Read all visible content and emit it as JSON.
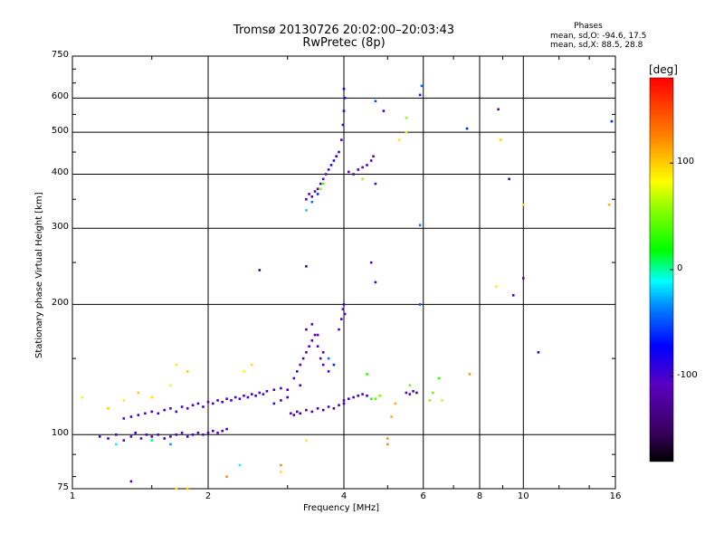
{
  "chart_data": {
    "type": "scatter",
    "title": "Tromsø 20130726 20:02:00–20:03:43",
    "subtitle": "RwPretec (8p)",
    "xlabel": "Frequency [MHz]",
    "ylabel": "Stationary phase Virtual Height [km]",
    "x_scale": "log",
    "y_scale": "log",
    "xlim": [
      1,
      16
    ],
    "ylim": [
      75,
      750
    ],
    "x_ticks": [
      "1",
      "2",
      "4",
      "6",
      "8",
      "10",
      "16"
    ],
    "x_tick_values": [
      1,
      2,
      4,
      6,
      8,
      10,
      16
    ],
    "y_ticks": [
      "750",
      "600",
      "500",
      "400",
      "300",
      "200",
      "100",
      "75"
    ],
    "y_tick_values": [
      750,
      600,
      500,
      400,
      300,
      200,
      100,
      75
    ],
    "grid": true,
    "phases": {
      "heading": "Phases",
      "line_o": "mean, sd,O: -94.6, 17.5",
      "line_x": "mean, sd,X:  88.5, 28.8"
    },
    "colorbar": {
      "title": "[deg]",
      "range": [
        -180,
        180
      ],
      "ticks": [
        "100",
        "0",
        "-100"
      ],
      "tick_values": [
        100,
        0,
        -100
      ]
    },
    "points": [
      [
        1.15,
        99,
        -100
      ],
      [
        1.2,
        98,
        -95
      ],
      [
        1.25,
        100,
        -110
      ],
      [
        1.3,
        97,
        -105
      ],
      [
        1.35,
        99,
        -100
      ],
      [
        1.38,
        101,
        -95
      ],
      [
        1.42,
        98,
        -110
      ],
      [
        1.46,
        100,
        -100
      ],
      [
        1.5,
        99,
        -105
      ],
      [
        1.55,
        100,
        -100
      ],
      [
        1.6,
        98,
        -95
      ],
      [
        1.65,
        99,
        -110
      ],
      [
        1.7,
        100,
        -100
      ],
      [
        1.75,
        101,
        -105
      ],
      [
        1.8,
        99,
        -100
      ],
      [
        1.85,
        100,
        -95
      ],
      [
        1.9,
        101,
        -100
      ],
      [
        1.95,
        100,
        -110
      ],
      [
        2.0,
        101,
        -100
      ],
      [
        2.05,
        102,
        -95
      ],
      [
        2.1,
        101,
        -105
      ],
      [
        2.15,
        102,
        -100
      ],
      [
        2.2,
        103,
        -100
      ],
      [
        1.3,
        109,
        -105
      ],
      [
        1.35,
        110,
        -95
      ],
      [
        1.4,
        111,
        -100
      ],
      [
        1.45,
        112,
        -110
      ],
      [
        1.5,
        113,
        -100
      ],
      [
        1.55,
        112,
        -95
      ],
      [
        1.6,
        114,
        -100
      ],
      [
        1.65,
        115,
        -105
      ],
      [
        1.7,
        113,
        -100
      ],
      [
        1.75,
        116,
        -95
      ],
      [
        1.8,
        115,
        -110
      ],
      [
        1.85,
        117,
        -100
      ],
      [
        1.9,
        118,
        -95
      ],
      [
        1.95,
        116,
        -100
      ],
      [
        2.0,
        119,
        -105
      ],
      [
        2.05,
        118,
        -100
      ],
      [
        2.1,
        120,
        -95
      ],
      [
        2.15,
        119,
        -100
      ],
      [
        2.2,
        121,
        -110
      ],
      [
        2.25,
        120,
        -100
      ],
      [
        2.3,
        122,
        -95
      ],
      [
        2.35,
        121,
        -100
      ],
      [
        2.4,
        123,
        -105
      ],
      [
        2.45,
        122,
        -100
      ],
      [
        2.5,
        124,
        -95
      ],
      [
        2.55,
        123,
        -100
      ],
      [
        2.6,
        125,
        -110
      ],
      [
        2.65,
        124,
        -100
      ],
      [
        2.7,
        126,
        -95
      ],
      [
        2.8,
        127,
        -100
      ],
      [
        2.9,
        128,
        -105
      ],
      [
        3.0,
        127,
        -100
      ],
      [
        2.8,
        118,
        -100
      ],
      [
        2.9,
        120,
        -105
      ],
      [
        3.0,
        122,
        -95
      ],
      [
        3.05,
        112,
        -120
      ],
      [
        3.1,
        111,
        -125
      ],
      [
        3.15,
        113,
        -120
      ],
      [
        3.2,
        112,
        -130
      ],
      [
        3.3,
        114,
        -125
      ],
      [
        3.4,
        113,
        -120
      ],
      [
        3.5,
        115,
        -125
      ],
      [
        3.6,
        114,
        -130
      ],
      [
        3.7,
        116,
        -120
      ],
      [
        3.8,
        115,
        -125
      ],
      [
        3.9,
        117,
        -120
      ],
      [
        4.0,
        118,
        -125
      ],
      [
        3.1,
        135,
        -110
      ],
      [
        3.15,
        140,
        -105
      ],
      [
        3.2,
        145,
        -110
      ],
      [
        3.25,
        150,
        -115
      ],
      [
        3.3,
        155,
        -110
      ],
      [
        3.35,
        160,
        -105
      ],
      [
        3.4,
        165,
        -110
      ],
      [
        3.45,
        170,
        -115
      ],
      [
        3.5,
        160,
        -110
      ],
      [
        3.55,
        150,
        -105
      ],
      [
        3.6,
        145,
        -110
      ],
      [
        3.3,
        175,
        -120
      ],
      [
        3.4,
        180,
        -115
      ],
      [
        3.5,
        170,
        -110
      ],
      [
        3.6,
        155,
        -105
      ],
      [
        3.2,
        130,
        -110
      ],
      [
        3.7,
        140,
        -100
      ],
      [
        3.8,
        145,
        -60
      ],
      [
        3.7,
        150,
        -40
      ],
      [
        3.9,
        175,
        -110
      ],
      [
        3.95,
        185,
        -105
      ],
      [
        3.98,
        195,
        -110
      ],
      [
        4.0,
        200,
        -105
      ],
      [
        4.02,
        190,
        -110
      ],
      [
        4.0,
        120,
        -100
      ],
      [
        4.1,
        121,
        -95
      ],
      [
        4.2,
        122,
        -100
      ],
      [
        4.3,
        123,
        -105
      ],
      [
        4.4,
        124,
        -100
      ],
      [
        4.5,
        123,
        -95
      ],
      [
        4.6,
        121,
        30
      ],
      [
        4.7,
        121,
        40
      ],
      [
        4.8,
        123,
        50
      ],
      [
        5.5,
        125,
        -110
      ],
      [
        5.6,
        124,
        -105
      ],
      [
        5.7,
        126,
        -110
      ],
      [
        5.8,
        125,
        -100
      ],
      [
        3.3,
        350,
        -120
      ],
      [
        3.35,
        360,
        -115
      ],
      [
        3.4,
        355,
        -125
      ],
      [
        3.45,
        365,
        -120
      ],
      [
        3.5,
        370,
        -115
      ],
      [
        3.55,
        380,
        -110
      ],
      [
        3.6,
        390,
        -105
      ],
      [
        3.65,
        400,
        -110
      ],
      [
        3.7,
        410,
        -100
      ],
      [
        3.75,
        420,
        -95
      ],
      [
        3.8,
        430,
        -90
      ],
      [
        3.85,
        440,
        -95
      ],
      [
        3.9,
        450,
        -100
      ],
      [
        3.95,
        480,
        -105
      ],
      [
        3.98,
        520,
        -100
      ],
      [
        4.0,
        560,
        -95
      ],
      [
        4.02,
        600,
        -90
      ],
      [
        4.0,
        630,
        -80
      ],
      [
        3.6,
        380,
        40
      ],
      [
        3.55,
        370,
        60
      ],
      [
        3.5,
        360,
        -60
      ],
      [
        3.4,
        345,
        -40
      ],
      [
        3.3,
        330,
        -20
      ],
      [
        4.1,
        405,
        -110
      ],
      [
        4.2,
        400,
        -115
      ],
      [
        4.3,
        410,
        -105
      ],
      [
        4.4,
        415,
        -110
      ],
      [
        4.5,
        420,
        -100
      ],
      [
        4.6,
        430,
        -105
      ],
      [
        4.65,
        440,
        -110
      ],
      [
        4.4,
        390,
        60
      ],
      [
        4.7,
        590,
        -50
      ],
      [
        4.9,
        560,
        -100
      ],
      [
        4.7,
        380,
        -110
      ],
      [
        5.5,
        540,
        60
      ],
      [
        5.5,
        500,
        80
      ],
      [
        5.3,
        480,
        90
      ],
      [
        5.95,
        640,
        -40
      ],
      [
        5.9,
        610,
        -60
      ],
      [
        7.5,
        510,
        -60
      ],
      [
        8.8,
        565,
        -110
      ],
      [
        8.9,
        480,
        100
      ],
      [
        9.3,
        390,
        -100
      ],
      [
        10.0,
        340,
        90
      ],
      [
        10.0,
        230,
        -110
      ],
      [
        9.5,
        210,
        -100
      ],
      [
        8.7,
        220,
        80
      ],
      [
        10.8,
        155,
        -90
      ],
      [
        15.5,
        340,
        110
      ],
      [
        15.7,
        530,
        -60
      ],
      [
        5.9,
        305,
        -40
      ],
      [
        5.9,
        200,
        -50
      ],
      [
        4.6,
        250,
        -110
      ],
      [
        4.7,
        225,
        -120
      ],
      [
        3.3,
        245,
        -130
      ],
      [
        2.6,
        240,
        -140
      ],
      [
        6.3,
        125,
        50
      ],
      [
        6.5,
        135,
        30
      ],
      [
        6.2,
        120,
        60
      ],
      [
        6.6,
        120,
        70
      ],
      [
        7.6,
        138,
        120
      ],
      [
        5.2,
        118,
        110
      ],
      [
        5.1,
        110,
        110
      ],
      [
        5.0,
        98,
        120
      ],
      [
        5.0,
        95,
        120
      ],
      [
        5.6,
        130,
        50
      ],
      [
        4.5,
        138,
        30
      ],
      [
        1.05,
        122,
        80
      ],
      [
        1.5,
        122,
        90
      ],
      [
        1.7,
        145,
        90
      ],
      [
        1.8,
        140,
        100
      ],
      [
        1.65,
        130,
        80
      ],
      [
        1.4,
        125,
        100
      ],
      [
        1.3,
        120,
        90
      ],
      [
        1.2,
        115,
        100
      ],
      [
        1.25,
        95,
        -10
      ],
      [
        1.5,
        97,
        0
      ],
      [
        1.65,
        95,
        -30
      ],
      [
        2.35,
        85,
        -10
      ],
      [
        2.2,
        80,
        120
      ],
      [
        1.7,
        75,
        90
      ],
      [
        1.8,
        75,
        100
      ],
      [
        1.35,
        78,
        -110
      ],
      [
        2.9,
        85,
        120
      ],
      [
        2.9,
        82,
        90
      ],
      [
        3.3,
        97,
        90
      ],
      [
        2.5,
        145,
        90
      ],
      [
        2.4,
        140,
        80
      ]
    ]
  }
}
